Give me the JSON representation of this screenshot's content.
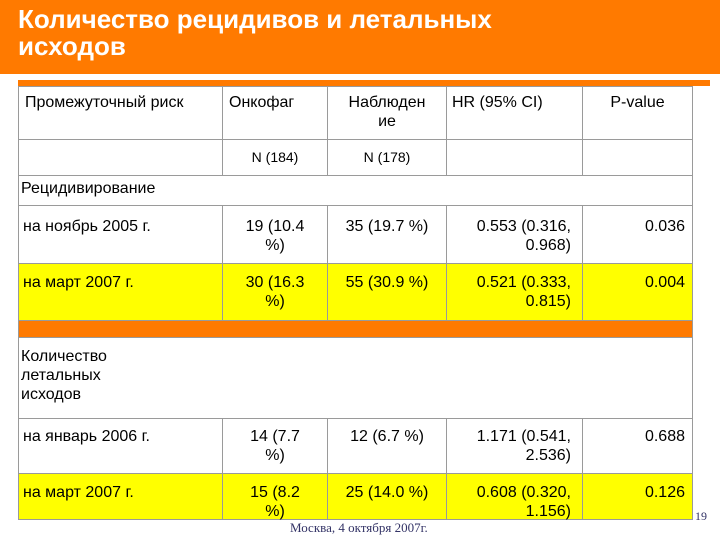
{
  "slide": {
    "title_line1": "Количество рецидивов и летальных",
    "title_line2": "исходов"
  },
  "table": {
    "headers": {
      "risk": "Промежуточный риск",
      "oncophag": "Онкофаг",
      "observation_1": "Наблюден",
      "observation_2": "ие",
      "hr": "HR (95% CI)",
      "pvalue": "P-value",
      "n_oncophag": "N (184)",
      "n_observation": "N (178)"
    },
    "sections": [
      {
        "label": "Рецидивирование",
        "rows": [
          {
            "label": "на ноябрь 2005 г.",
            "oncophag_1": "19 (10.4",
            "oncophag_2": "%)",
            "observation": "35 (19.7 %)",
            "hr_1": "0.553 (0.316,",
            "hr_2": "0.968)",
            "pvalue": "0.036"
          },
          {
            "label": "на март 2007 г.",
            "oncophag_1": "30 (16.3",
            "oncophag_2": "%)",
            "observation": "55 (30.9 %)",
            "hr_1": "0.521 (0.333,",
            "hr_2": "0.815)",
            "pvalue": "0.004"
          }
        ]
      },
      {
        "label_1": "Количество",
        "label_2": "летальных",
        "label_3": "исходов",
        "rows": [
          {
            "label": "на январь 2006 г.",
            "oncophag_1": "14 (7.7",
            "oncophag_2": "%)",
            "observation": "12 (6.7 %)",
            "hr_1": "1.171 (0.541,",
            "hr_2": "2.536)",
            "pvalue": "0.688"
          },
          {
            "label": "на март 2007 г.",
            "oncophag_1": "15 (8.2",
            "oncophag_2": "%)",
            "observation": "25 (14.0 %)",
            "hr_1": "0.608 (0.320,",
            "hr_2": "1.156)",
            "pvalue": "0.126"
          }
        ]
      }
    ]
  },
  "footer": {
    "text": "Москва, 4 октября 2007г.",
    "page": "19"
  },
  "colors": {
    "accent": "#ff7a00",
    "highlight": "#ffff00"
  }
}
